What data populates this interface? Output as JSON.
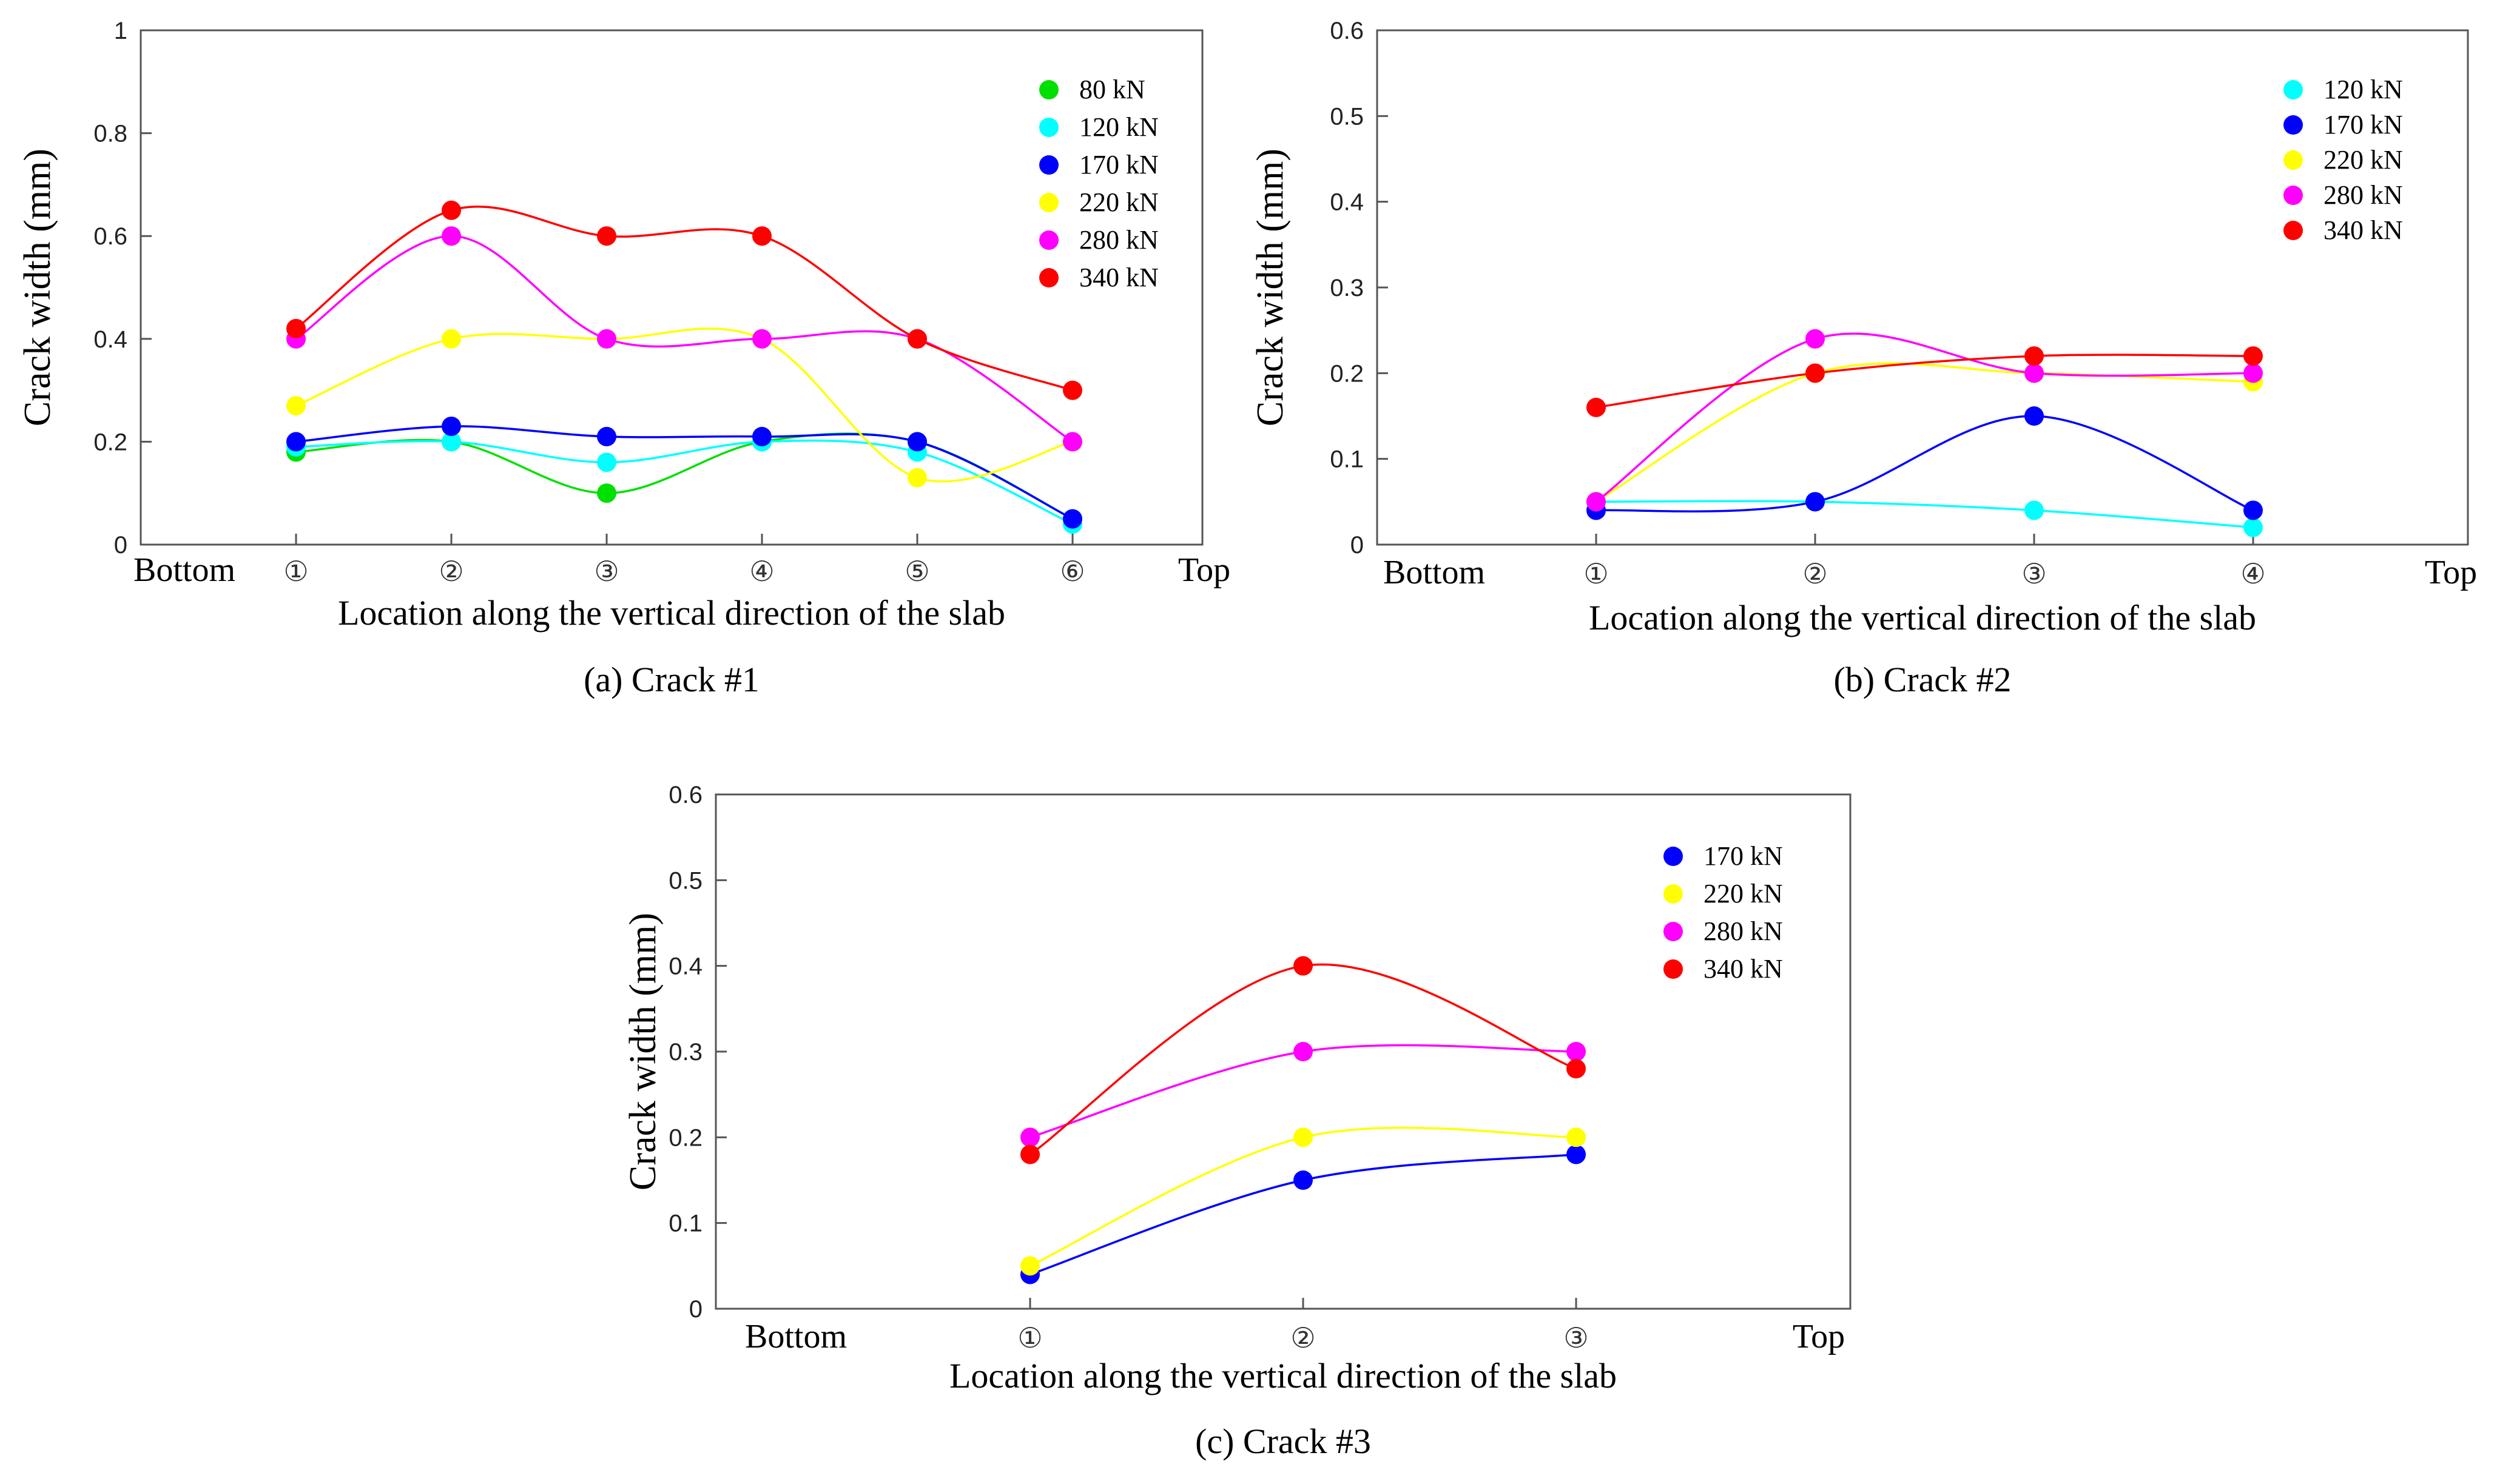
{
  "chart_data": [
    {
      "type": "line",
      "caption": "(a) Crack #1",
      "xlabel": "Location along the vertical direction of the slab",
      "ylabel": "Crack width (mm)",
      "x_end_labels": [
        "Bottom",
        "Top"
      ],
      "categories": [
        "①",
        "②",
        "③",
        "④",
        "⑤",
        "⑥"
      ],
      "ylim": [
        0,
        1
      ],
      "yticks": [
        "0",
        "0.2",
        "0.4",
        "0.6",
        "0.8",
        "1"
      ],
      "legend_position": "top-right",
      "grid": false,
      "series": [
        {
          "name": "80 kN",
          "color": "#00e000",
          "values": [
            0.18,
            0.2,
            0.1,
            0.2,
            0.2,
            0.05
          ]
        },
        {
          "name": "120 kN",
          "color": "#00ffff",
          "values": [
            0.19,
            0.2,
            0.16,
            0.2,
            0.18,
            0.04
          ]
        },
        {
          "name": "170 kN",
          "color": "#0000ff",
          "values": [
            0.2,
            0.23,
            0.21,
            0.21,
            0.2,
            0.05
          ]
        },
        {
          "name": "220 kN",
          "color": "#ffff00",
          "values": [
            0.27,
            0.4,
            0.4,
            0.4,
            0.13,
            0.2
          ]
        },
        {
          "name": "280 kN",
          "color": "#ff00ff",
          "values": [
            0.4,
            0.6,
            0.4,
            0.4,
            0.4,
            0.2
          ]
        },
        {
          "name": "340 kN",
          "color": "#ff0000",
          "values": [
            0.42,
            0.65,
            0.6,
            0.6,
            0.4,
            0.3
          ]
        }
      ]
    },
    {
      "type": "line",
      "caption": "(b) Crack #2",
      "xlabel": "Location along the vertical direction of the slab",
      "ylabel": "Crack width (mm)",
      "x_end_labels": [
        "Bottom",
        "Top"
      ],
      "categories": [
        "①",
        "②",
        "③",
        "④"
      ],
      "ylim": [
        0,
        0.6
      ],
      "yticks": [
        "0",
        "0.1",
        "0.2",
        "0.3",
        "0.4",
        "0.5",
        "0.6"
      ],
      "legend_position": "top-right",
      "grid": false,
      "series": [
        {
          "name": "120 kN",
          "color": "#00ffff",
          "values": [
            0.05,
            0.05,
            0.04,
            0.02
          ]
        },
        {
          "name": "170 kN",
          "color": "#0000ff",
          "values": [
            0.04,
            0.05,
            0.15,
            0.04
          ]
        },
        {
          "name": "220 kN",
          "color": "#ffff00",
          "values": [
            0.05,
            0.2,
            0.2,
            0.19
          ]
        },
        {
          "name": "280 kN",
          "color": "#ff00ff",
          "values": [
            0.05,
            0.24,
            0.2,
            0.2
          ]
        },
        {
          "name": "340 kN",
          "color": "#ff0000",
          "values": [
            0.16,
            0.2,
            0.22,
            0.22
          ]
        }
      ]
    },
    {
      "type": "line",
      "caption": "(c) Crack #3",
      "xlabel": "Location along the vertical direction of the slab",
      "ylabel": "Crack width (mm)",
      "x_end_labels": [
        "Bottom",
        "Top"
      ],
      "categories": [
        "①",
        "②",
        "③"
      ],
      "ylim": [
        0,
        0.6
      ],
      "yticks": [
        "0",
        "0.1",
        "0.2",
        "0.3",
        "0.4",
        "0.5",
        "0.6"
      ],
      "legend_position": "top-right",
      "grid": false,
      "series": [
        {
          "name": "170 kN",
          "color": "#0000ff",
          "values": [
            0.04,
            0.15,
            0.18
          ]
        },
        {
          "name": "220 kN",
          "color": "#ffff00",
          "values": [
            0.05,
            0.2,
            0.2
          ]
        },
        {
          "name": "280 kN",
          "color": "#ff00ff",
          "values": [
            0.2,
            0.3,
            0.3
          ]
        },
        {
          "name": "340 kN",
          "color": "#ff0000",
          "values": [
            0.18,
            0.4,
            0.28
          ]
        }
      ]
    }
  ]
}
